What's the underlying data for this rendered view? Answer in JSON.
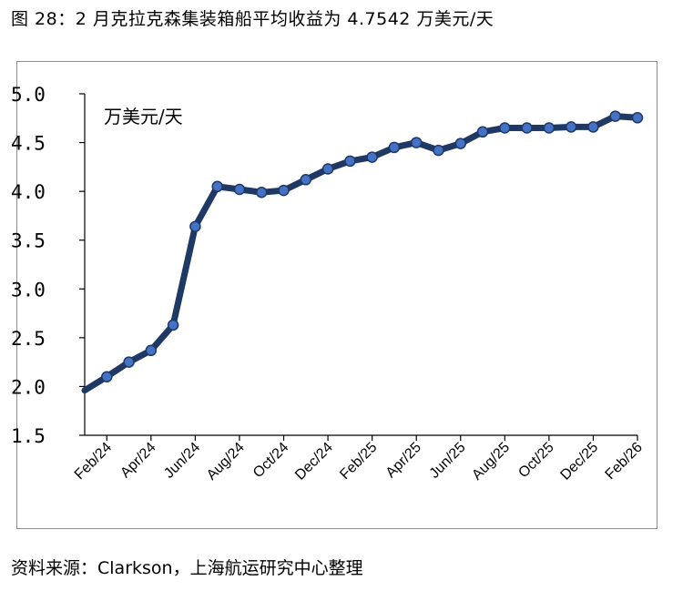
{
  "figure": {
    "title": "图 28：2 月克拉克森集装箱船平均收益为 4.7542 万美元/天",
    "source": "资料来源：Clarkson，上海航运研究中心整理"
  },
  "chart_data": {
    "type": "line",
    "unit_label": "万美元/天",
    "ylim": [
      1.5,
      5.0
    ],
    "yticks": [
      "1.5",
      "2.0",
      "2.5",
      "3.0",
      "3.5",
      "4.0",
      "4.5",
      "5.0"
    ],
    "xtick_labels": [
      "Feb/24",
      "Apr/24",
      "Jun/24",
      "Aug/24",
      "Oct/24",
      "Dec/24",
      "Feb/25",
      "Apr/25",
      "Jun/25",
      "Aug/25",
      "Oct/25",
      "Dec/25",
      "Feb/26"
    ],
    "grid": false,
    "legend": "none",
    "line_color": "#1f3864",
    "marker_color": "#4472c4",
    "series": [
      {
        "x": [
          "Jan/24",
          "Feb/24",
          "Mar/24",
          "Apr/24",
          "May/24",
          "Jun/24",
          "Jul/24",
          "Aug/24",
          "Sep/24",
          "Oct/24",
          "Nov/24",
          "Dec/24",
          "Jan/25",
          "Feb/25",
          "Mar/25",
          "Apr/25",
          "May/25",
          "Jun/25",
          "Jul/25",
          "Aug/25",
          "Sep/25",
          "Oct/25",
          "Nov/25",
          "Dec/25",
          "Jan/26",
          "Feb/26"
        ],
        "values": [
          1.96,
          2.1,
          2.25,
          2.37,
          2.63,
          3.64,
          4.05,
          4.02,
          3.99,
          4.01,
          4.12,
          4.23,
          4.31,
          4.35,
          4.45,
          4.5,
          4.42,
          4.49,
          4.61,
          4.65,
          4.65,
          4.65,
          4.66,
          4.66,
          4.77,
          4.7542
        ]
      }
    ]
  }
}
